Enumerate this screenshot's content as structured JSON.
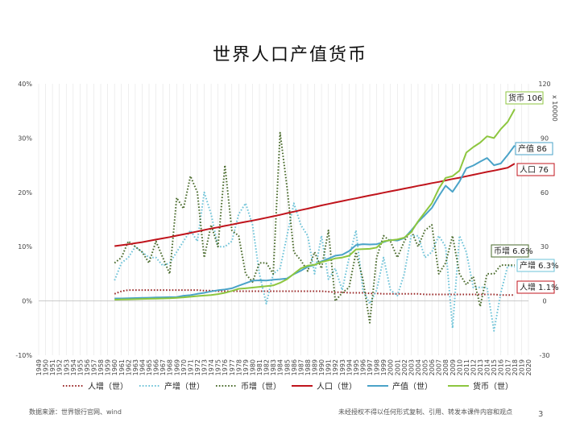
{
  "header": {
    "title": "世界人口产值货币"
  },
  "footer": {
    "source": "数据来源：世界银行官网、wind",
    "notice": "未经授权不得以任何形式复制、引用、转发本课件内容和观点",
    "page": "3"
  },
  "chart_data": {
    "type": "line",
    "years": [
      1960,
      1961,
      1962,
      1963,
      1964,
      1965,
      1966,
      1967,
      1968,
      1969,
      1970,
      1971,
      1972,
      1973,
      1974,
      1975,
      1976,
      1977,
      1978,
      1979,
      1980,
      1981,
      1982,
      1983,
      1984,
      1985,
      1986,
      1987,
      1988,
      1989,
      1990,
      1991,
      1992,
      1993,
      1994,
      1995,
      1996,
      1997,
      1998,
      1999,
      2000,
      2001,
      2002,
      2003,
      2004,
      2005,
      2006,
      2007,
      2008,
      2009,
      2010,
      2011,
      2012,
      2013,
      2014,
      2015,
      2016,
      2017,
      2018
    ],
    "x_tick_labels": [
      "1949",
      "1950",
      "1951",
      "1952",
      "1953",
      "1954",
      "1955",
      "1956",
      "1957",
      "1958",
      "1959",
      "1960",
      "1961",
      "1962",
      "1963",
      "1964",
      "1965",
      "1966",
      "1967",
      "1968",
      "1969",
      "1970",
      "1971",
      "1972",
      "1973",
      "1974",
      "1975",
      "1976",
      "1977",
      "1978",
      "1979",
      "1980",
      "1981",
      "1982",
      "1983",
      "1984",
      "1985",
      "1986",
      "1987",
      "1988",
      "1989",
      "1990",
      "1991",
      "1992",
      "1993",
      "1994",
      "1995",
      "1996",
      "1997",
      "1998",
      "1999",
      "2000",
      "2001",
      "2002",
      "2003",
      "2004",
      "2005",
      "2006",
      "2007",
      "2008",
      "2009",
      "2010",
      "2011",
      "2012",
      "2013",
      "2014",
      "2015",
      "2016",
      "2017",
      "2018",
      "2019",
      "2020"
    ],
    "left_axis": {
      "ticks": [
        "40%",
        "30%",
        "20%",
        "10%",
        "0%",
        "-10%"
      ],
      "min": -10,
      "max": 40
    },
    "right_axis": {
      "ticks": [
        "120",
        "90",
        "60",
        "30",
        "0",
        "-30"
      ],
      "min": -30,
      "max": 120,
      "unit_label": "x 10000"
    },
    "series": [
      {
        "name": "人增（世）",
        "axis": "left",
        "style": "dotted",
        "color": "#9b2b2b",
        "values": [
          1.3,
          1.8,
          2.0,
          2.0,
          2.0,
          2.0,
          2.0,
          2.0,
          2.0,
          2.0,
          2.0,
          2.0,
          2.0,
          1.9,
          1.9,
          1.8,
          1.8,
          1.8,
          1.8,
          1.8,
          1.8,
          1.8,
          1.8,
          1.8,
          1.8,
          1.8,
          1.8,
          1.8,
          1.8,
          1.8,
          1.8,
          1.7,
          1.6,
          1.6,
          1.5,
          1.5,
          1.5,
          1.4,
          1.4,
          1.3,
          1.3,
          1.3,
          1.3,
          1.3,
          1.3,
          1.2,
          1.2,
          1.2,
          1.2,
          1.2,
          1.2,
          1.2,
          1.2,
          1.2,
          1.2,
          1.2,
          1.1,
          1.1,
          1.1
        ]
      },
      {
        "name": "产增（世）",
        "axis": "left",
        "style": "dotted",
        "color": "#6ec3d8",
        "values": [
          3.8,
          7.0,
          8.0,
          10.0,
          9.0,
          8.0,
          8.0,
          6.5,
          7.0,
          9.0,
          11.0,
          13.0,
          11.0,
          20.0,
          16.0,
          10.0,
          10.0,
          11.0,
          16.0,
          18.0,
          14.0,
          5.0,
          -0.5,
          5.0,
          6.0,
          12.0,
          18.0,
          14.0,
          12.0,
          5.0,
          12.0,
          4.0,
          6.0,
          2.0,
          8.0,
          13.0,
          2.0,
          -0.5,
          2.0,
          8.0,
          2.0,
          1.0,
          5.0,
          12.0,
          12.0,
          8.0,
          9.0,
          12.0,
          10.0,
          -5.0,
          12.0,
          9.0,
          2.5,
          2.5,
          2.5,
          -5.5,
          1.5,
          6.5,
          6.3
        ]
      },
      {
        "name": "币增（世）",
        "axis": "left",
        "style": "dotted",
        "color": "#4a6b2c",
        "values": [
          7.0,
          8.0,
          11.0,
          10.0,
          9.0,
          7.0,
          11.0,
          8.0,
          5.0,
          19.0,
          17.0,
          23.0,
          20.0,
          8.0,
          14.0,
          10.0,
          25.0,
          13.0,
          12.0,
          5.0,
          3.5,
          7.0,
          7.0,
          5.0,
          31.0,
          21.0,
          9.0,
          7.5,
          5.5,
          9.0,
          6.0,
          13.0,
          0.0,
          1.5,
          2.5,
          9.0,
          4.0,
          -4.0,
          8.0,
          12.0,
          11.0,
          8.0,
          11.0,
          13.0,
          10.0,
          13.0,
          14.0,
          5.0,
          7.0,
          12.0,
          5.0,
          3.0,
          4.5,
          -1.0,
          5.0,
          5.0,
          6.6,
          6.6,
          6.6
        ]
      },
      {
        "name": "人口（世）",
        "axis": "right",
        "style": "solid",
        "color": "#c0141c",
        "values": [
          30.3,
          30.8,
          31.3,
          31.9,
          32.5,
          33.2,
          33.9,
          34.6,
          35.3,
          36.1,
          36.8,
          37.6,
          38.4,
          39.2,
          40.0,
          40.7,
          41.5,
          42.2,
          43.0,
          43.7,
          44.4,
          45.2,
          46.0,
          46.8,
          47.6,
          48.5,
          49.3,
          50.2,
          51.0,
          51.9,
          52.8,
          53.6,
          54.4,
          55.2,
          56.0,
          56.7,
          57.5,
          58.3,
          59.0,
          59.8,
          60.6,
          61.3,
          62.1,
          62.8,
          63.6,
          64.3,
          65.1,
          65.8,
          66.6,
          67.4,
          68.1,
          68.9,
          69.7,
          70.5,
          71.3,
          72.0,
          72.8,
          73.6,
          75.9
        ]
      },
      {
        "name": "产值（世）",
        "axis": "right",
        "style": "solid",
        "color": "#4aa3c8",
        "values": [
          1.4,
          1.4,
          1.5,
          1.6,
          1.7,
          1.8,
          1.9,
          2.0,
          2.1,
          2.2,
          2.9,
          3.2,
          3.9,
          4.5,
          5.3,
          5.9,
          6.3,
          7.0,
          8.4,
          9.8,
          11.2,
          11.4,
          11.3,
          11.7,
          12.0,
          12.4,
          14.8,
          16.7,
          18.9,
          19.9,
          21.9,
          23.4,
          25.0,
          25.5,
          27.6,
          30.9,
          31.4,
          31.2,
          31.4,
          32.5,
          33.8,
          33.4,
          34.7,
          38.9,
          43.6,
          47.4,
          51.4,
          57.9,
          63.7,
          60.3,
          66.0,
          73.3,
          74.8,
          77.0,
          79.0,
          75.0,
          76.0,
          80.7,
          85.9
        ]
      },
      {
        "name": "货币（世）",
        "axis": "right",
        "style": "solid",
        "color": "#8dc63f",
        "values": [
          0.7,
          0.8,
          0.9,
          1.0,
          1.1,
          1.2,
          1.3,
          1.4,
          1.5,
          1.7,
          2.0,
          2.3,
          2.7,
          3.0,
          3.3,
          3.8,
          4.5,
          5.5,
          6.7,
          7.0,
          7.4,
          7.8,
          8.2,
          8.6,
          10.0,
          12.0,
          15.0,
          18.0,
          19.5,
          20.0,
          21.5,
          22.5,
          23.5,
          24.0,
          25.0,
          28.5,
          28.6,
          28.8,
          29.5,
          33.0,
          33.5,
          34.0,
          35.0,
          38.0,
          44.0,
          49.0,
          54.0,
          62.0,
          68.0,
          69.0,
          72.0,
          82.0,
          85.0,
          87.5,
          91.0,
          90.0,
          95.0,
          99.0,
          106.0
        ]
      }
    ],
    "legend": [
      "人增（世）",
      "产增（世）",
      "币增（世）",
      "人口（世）",
      "产值（世）",
      "货币（世）"
    ],
    "callouts": [
      {
        "text": "货币 106",
        "color": "#8dc63f"
      },
      {
        "text": "产值 86",
        "color": "#4aa3c8"
      },
      {
        "text": "人口 76",
        "color": "#c0141c"
      },
      {
        "text": "币增 6.6%",
        "color": "#4a6b2c"
      },
      {
        "text": "产增 6.3%",
        "color": "#6ec3d8"
      },
      {
        "text": "人增 1.1%",
        "color": "#c0141c"
      }
    ]
  }
}
